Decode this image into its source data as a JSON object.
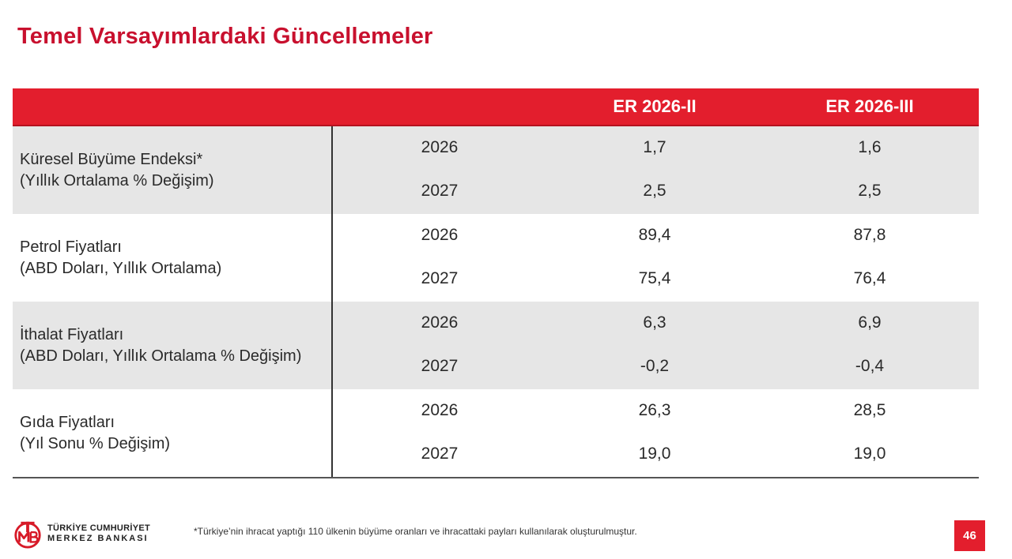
{
  "title": "Temel Varsayımlardaki Güncellemeler",
  "table": {
    "columns": [
      "ER 2026-II",
      "ER 2026-III"
    ],
    "groups": [
      {
        "label_line1": "Küresel Büyüme Endeksi*",
        "label_line2": "(Yıllık Ortalama % Değişim)",
        "rows": [
          {
            "year": "2026",
            "v1": "1,7",
            "v2": "1,6"
          },
          {
            "year": "2027",
            "v1": "2,5",
            "v2": "2,5"
          }
        ]
      },
      {
        "label_line1": "Petrol Fiyatları",
        "label_line2": "(ABD Doları, Yıllık Ortalama)",
        "rows": [
          {
            "year": "2026",
            "v1": "89,4",
            "v2": "87,8"
          },
          {
            "year": "2027",
            "v1": "75,4",
            "v2": "76,4"
          }
        ]
      },
      {
        "label_line1": "İthalat Fiyatları",
        "label_line2": "(ABD Doları, Yıllık Ortalama % Değişim)",
        "rows": [
          {
            "year": "2026",
            "v1": "6,3",
            "v2": "6,9"
          },
          {
            "year": "2027",
            "v1": "-0,2",
            "v2": "-0,4"
          }
        ]
      },
      {
        "label_line1": "Gıda Fiyatları",
        "label_line2": "(Yıl Sonu % Değişim)",
        "rows": [
          {
            "year": "2026",
            "v1": "26,3",
            "v2": "28,5"
          },
          {
            "year": "2027",
            "v1": "19,0",
            "v2": "19,0"
          }
        ]
      }
    ]
  },
  "footer": {
    "logo_line1": "TÜRKİYE CUMHURİYET",
    "logo_line2": "MERKEZ BANKASI",
    "logo_mark": "TCMB",
    "footnote": "*Türkiye’nin ihracat yaptığı 110 ülkenin büyüme oranları ve ihracattaki payları kullanılarak oluşturulmuştur.",
    "page_number": "46"
  },
  "colors": {
    "accent": "#e31e2d",
    "title": "#c8102e",
    "shade": "#e6e6e6"
  }
}
